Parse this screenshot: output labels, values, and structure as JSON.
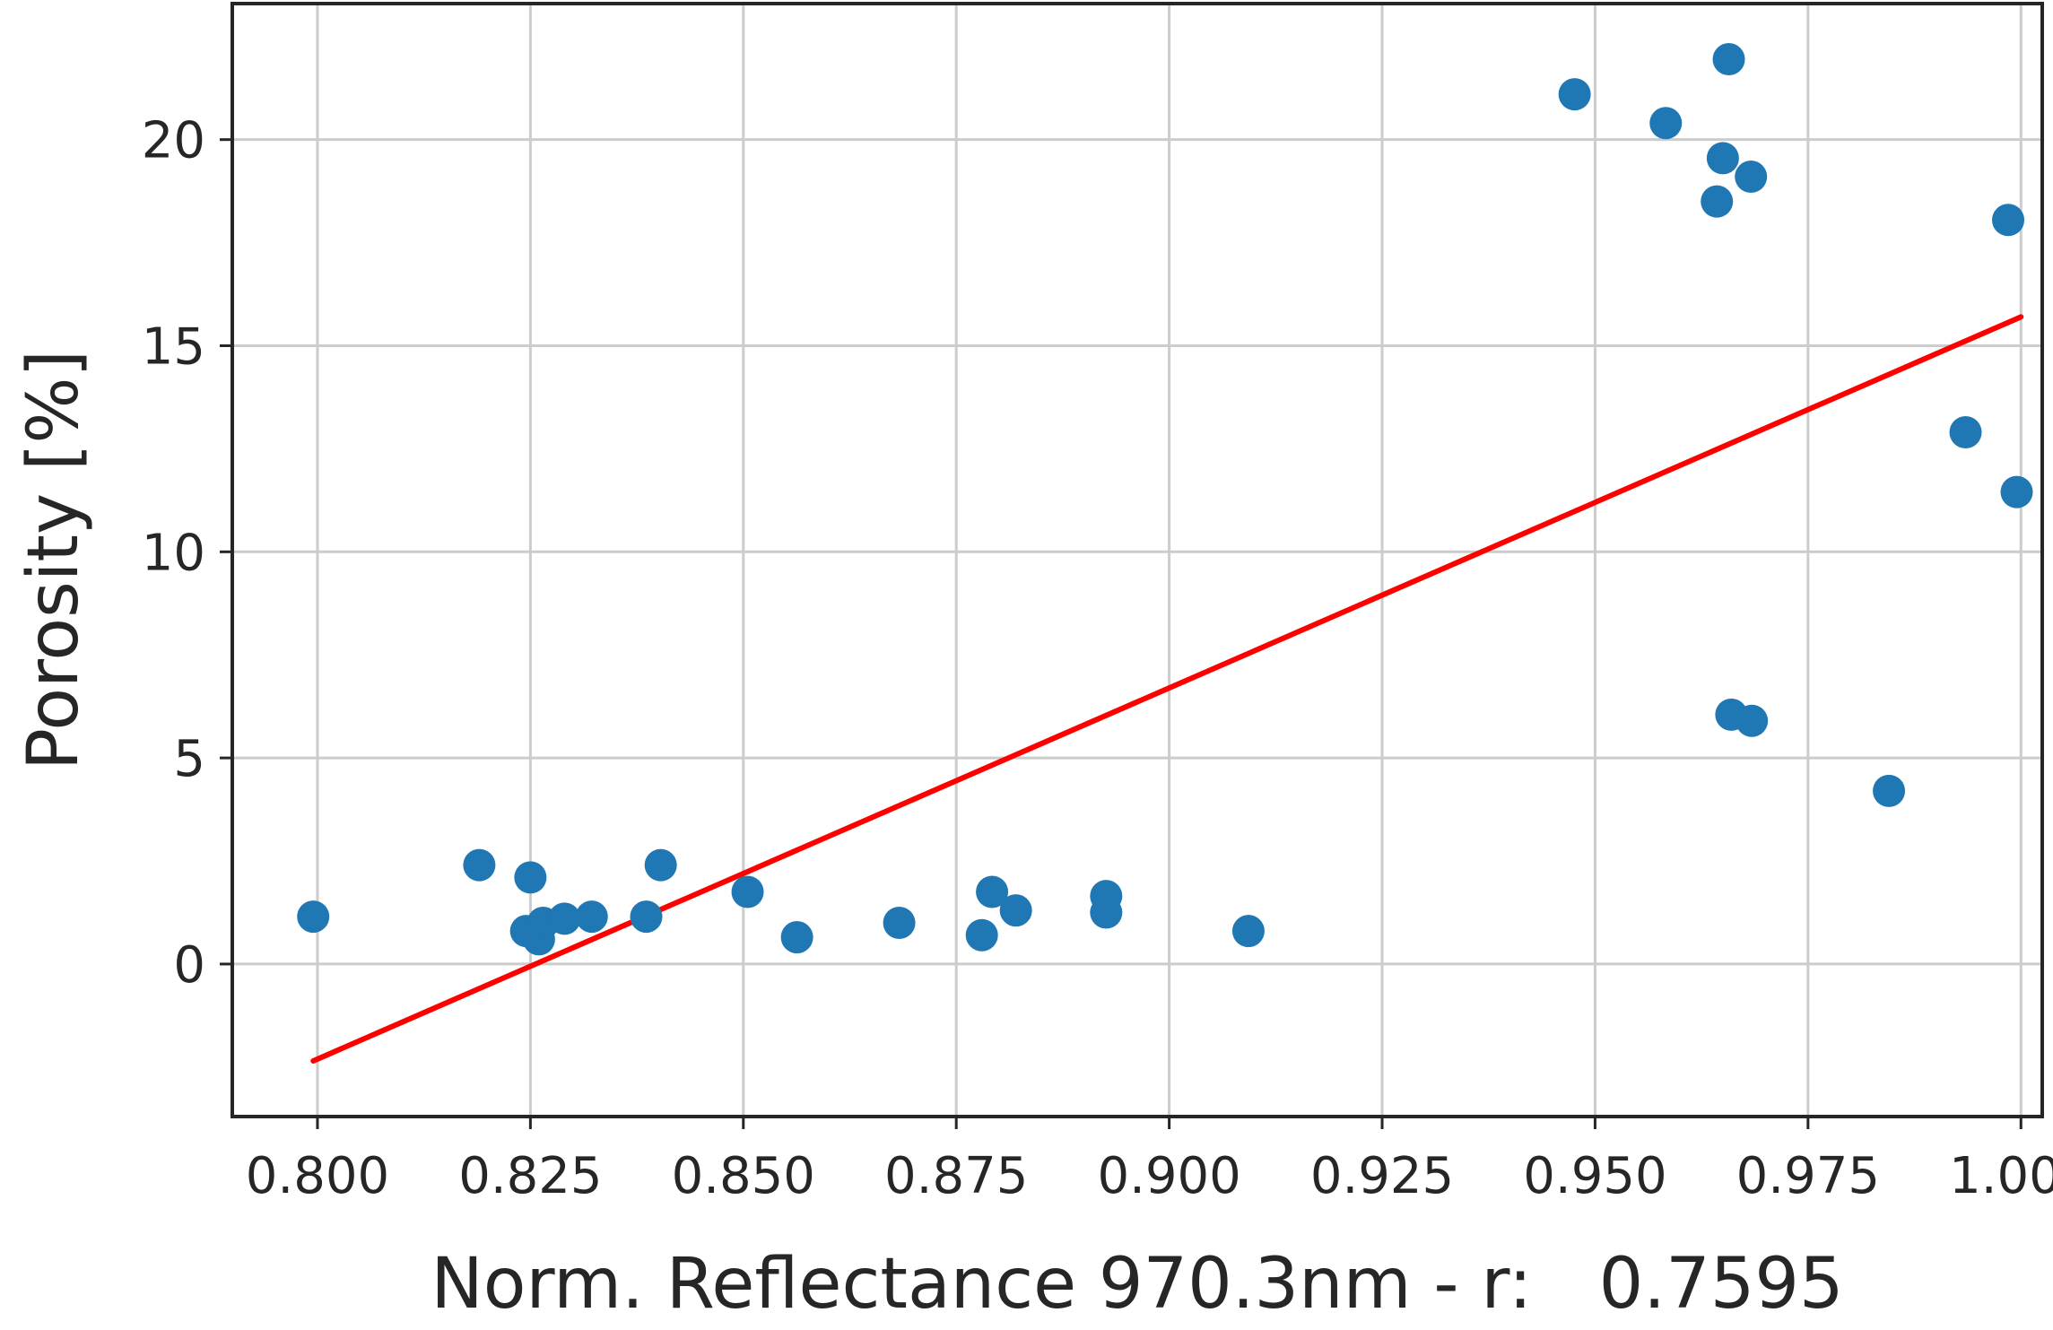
{
  "chart_data": {
    "type": "scatter",
    "xlabel": "Norm. Reflectance 970.3nm - r:   0.7595",
    "ylabel": "Porosity [%]",
    "xlim": [
      0.79,
      1.0025
    ],
    "ylim": [
      -3.7,
      23.3
    ],
    "xticks": [
      0.8,
      0.825,
      0.85,
      0.875,
      0.9,
      0.925,
      0.95,
      0.975,
      1.0
    ],
    "xtick_labels": [
      "0.800",
      "0.825",
      "0.850",
      "0.875",
      "0.900",
      "0.925",
      "0.950",
      "0.975",
      "1.000"
    ],
    "yticks": [
      0,
      5,
      10,
      15,
      20
    ],
    "ytick_labels": [
      "0",
      "5",
      "10",
      "15",
      "20"
    ],
    "grid": true,
    "point_color": "#1f77b4",
    "line_color": "#ff0000",
    "points": [
      [
        0.7995,
        1.15
      ],
      [
        0.819,
        2.4
      ],
      [
        0.825,
        2.1
      ],
      [
        0.8245,
        0.8
      ],
      [
        0.826,
        0.6
      ],
      [
        0.8265,
        1.0
      ],
      [
        0.829,
        1.1
      ],
      [
        0.8322,
        1.15
      ],
      [
        0.8386,
        1.15
      ],
      [
        0.8403,
        2.4
      ],
      [
        0.8505,
        1.75
      ],
      [
        0.8563,
        0.65
      ],
      [
        0.8683,
        1.0
      ],
      [
        0.878,
        0.7
      ],
      [
        0.8792,
        1.75
      ],
      [
        0.882,
        1.3
      ],
      [
        0.8926,
        1.65
      ],
      [
        0.8926,
        1.25
      ],
      [
        0.9093,
        0.8
      ],
      [
        0.9476,
        21.1
      ],
      [
        0.9583,
        20.4
      ],
      [
        0.9643,
        18.5
      ],
      [
        0.965,
        19.55
      ],
      [
        0.9657,
        21.95
      ],
      [
        0.966,
        6.05
      ],
      [
        0.9683,
        19.1
      ],
      [
        0.9684,
        5.9
      ],
      [
        0.9845,
        4.2
      ],
      [
        0.9935,
        12.9
      ],
      [
        0.9985,
        18.05
      ],
      [
        0.9995,
        11.45
      ]
    ],
    "fit_line": {
      "x": [
        0.7995,
        1.0
      ],
      "y": [
        -2.35,
        15.7
      ]
    }
  }
}
